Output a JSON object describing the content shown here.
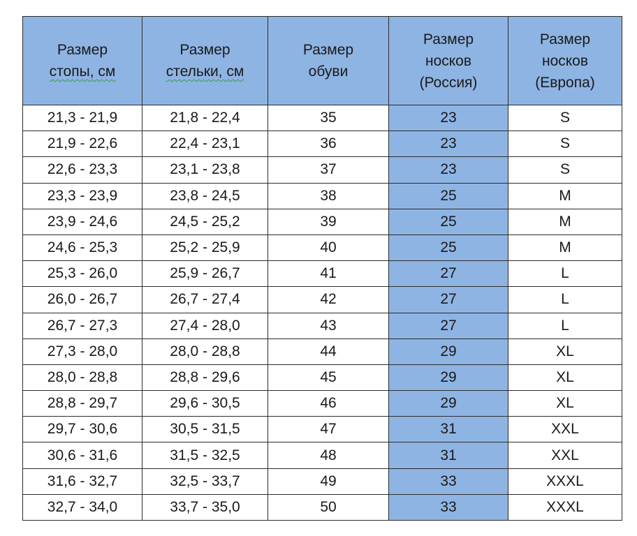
{
  "headers": [
    {
      "lines": [
        "Размер",
        "стопы, см"
      ]
    },
    {
      "lines": [
        "Размер",
        "стельки, см"
      ]
    },
    {
      "lines": [
        "Размер",
        "обуви"
      ]
    },
    {
      "lines": [
        "Размер",
        "носков",
        "(Россия)"
      ]
    },
    {
      "lines": [
        "Размер",
        "носков",
        "(Европа)"
      ]
    }
  ],
  "rows": [
    [
      "21,3 - 21,9",
      "21,8 - 22,4",
      "35",
      "23",
      "S"
    ],
    [
      "21,9 - 22,6",
      "22,4 - 23,1",
      "36",
      "23",
      "S"
    ],
    [
      "22,6 - 23,3",
      "23,1 - 23,8",
      "37",
      "23",
      "S"
    ],
    [
      "23,3 - 23,9",
      "23,8 - 24,5",
      "38",
      "25",
      "M"
    ],
    [
      "23,9 - 24,6",
      "24,5 - 25,2",
      "39",
      "25",
      "M"
    ],
    [
      "24,6 - 25,3",
      "25,2 - 25,9",
      "40",
      "25",
      "M"
    ],
    [
      "25,3 - 26,0",
      "25,9 - 26,7",
      "41",
      "27",
      "L"
    ],
    [
      "26,0 - 26,7",
      "26,7 - 27,4",
      "42",
      "27",
      "L"
    ],
    [
      "26,7 - 27,3",
      "27,4 - 28,0",
      "43",
      "27",
      "L"
    ],
    [
      "27,3 - 28,0",
      "28,0 - 28,8",
      "44",
      "29",
      "XL"
    ],
    [
      "28,0 - 28,8",
      "28,8 - 29,6",
      "45",
      "29",
      "XL"
    ],
    [
      "28,8 - 29,7",
      "29,6 - 30,5",
      "46",
      "29",
      "XL"
    ],
    [
      "29,7 - 30,6",
      "30,5 - 31,5",
      "47",
      "31",
      "XXL"
    ],
    [
      "30,6 - 31,6",
      "31,5 - 32,5",
      "48",
      "31",
      "XXL"
    ],
    [
      "31,6 - 32,7",
      "32,5 - 33,7",
      "49",
      "33",
      "XXXL"
    ],
    [
      "32,7 - 34,0",
      "33,7 - 35,0",
      "50",
      "33",
      "XXXL"
    ]
  ],
  "colors": {
    "header_fill": "#8eb4e3",
    "highlight_column_fill": "#8eb4e3",
    "border": "#2b2b2b",
    "spellcheck_underline": "#2e9e3e"
  }
}
